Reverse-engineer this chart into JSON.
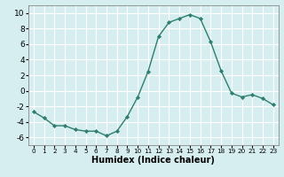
{
  "x": [
    0,
    1,
    2,
    3,
    4,
    5,
    6,
    7,
    8,
    9,
    10,
    11,
    12,
    13,
    14,
    15,
    16,
    17,
    18,
    19,
    20,
    21,
    22,
    23
  ],
  "y": [
    -2.7,
    -3.5,
    -4.5,
    -4.5,
    -5.0,
    -5.2,
    -5.2,
    -5.8,
    -5.2,
    -3.3,
    -0.8,
    2.5,
    7.0,
    8.8,
    9.3,
    9.8,
    9.3,
    6.3,
    2.6,
    -0.3,
    -0.8,
    -0.5,
    -1.0,
    -1.8
  ],
  "line_color": "#2e7d6e",
  "marker": "D",
  "marker_size": 2.2,
  "line_width": 1.0,
  "xlabel": "Humidex (Indice chaleur)",
  "xlabel_fontsize": 7,
  "xlabel_weight": "bold",
  "ylim": [
    -7,
    11
  ],
  "xlim": [
    -0.5,
    23.5
  ],
  "yticks": [
    -6,
    -4,
    -2,
    0,
    2,
    4,
    6,
    8,
    10
  ],
  "xticks": [
    0,
    1,
    2,
    3,
    4,
    5,
    6,
    7,
    8,
    9,
    10,
    11,
    12,
    13,
    14,
    15,
    16,
    17,
    18,
    19,
    20,
    21,
    22,
    23
  ],
  "background_color": "#d6eef0",
  "grid_color": "#ffffff",
  "ytick_fontsize": 6.5,
  "xtick_fontsize": 5.2
}
